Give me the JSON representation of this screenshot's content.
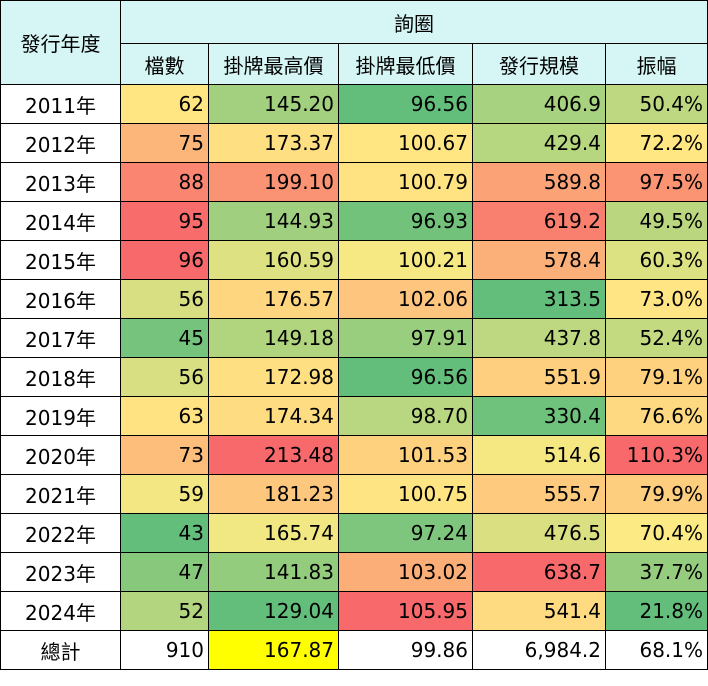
{
  "table": {
    "year_header": "發行年度",
    "group_header": "詢圈",
    "columns": [
      "檔數",
      "掛牌最高價",
      "掛牌最低價",
      "發行規模",
      "振幅"
    ],
    "rows": [
      [
        "2011年",
        "62",
        "145.20",
        "96.56",
        "406.9",
        "50.4%"
      ],
      [
        "2012年",
        "75",
        "173.37",
        "100.67",
        "429.4",
        "72.2%"
      ],
      [
        "2013年",
        "88",
        "199.10",
        "100.79",
        "589.8",
        "97.5%"
      ],
      [
        "2014年",
        "95",
        "144.93",
        "96.93",
        "619.2",
        "49.5%"
      ],
      [
        "2015年",
        "96",
        "160.59",
        "100.21",
        "578.4",
        "60.3%"
      ],
      [
        "2016年",
        "56",
        "176.57",
        "102.06",
        "313.5",
        "73.0%"
      ],
      [
        "2017年",
        "45",
        "149.18",
        "97.91",
        "437.8",
        "52.4%"
      ],
      [
        "2018年",
        "56",
        "172.98",
        "96.56",
        "551.9",
        "79.1%"
      ],
      [
        "2019年",
        "63",
        "174.34",
        "98.70",
        "330.4",
        "76.6%"
      ],
      [
        "2020年",
        "73",
        "213.48",
        "101.53",
        "514.6",
        "110.3%"
      ],
      [
        "2021年",
        "59",
        "181.23",
        "100.75",
        "555.7",
        "79.9%"
      ],
      [
        "2022年",
        "43",
        "165.74",
        "97.24",
        "476.5",
        "70.4%"
      ],
      [
        "2023年",
        "47",
        "141.83",
        "103.02",
        "638.7",
        "37.7%"
      ],
      [
        "2024年",
        "52",
        "129.04",
        "105.95",
        "541.4",
        "21.8%"
      ]
    ],
    "total": [
      "總計",
      "910",
      "167.87",
      "99.86",
      "6,984.2",
      "68.1%"
    ]
  }
}
